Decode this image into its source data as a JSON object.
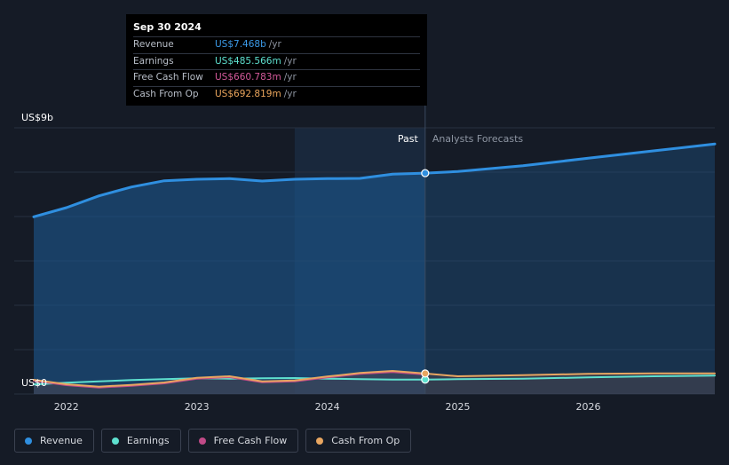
{
  "colors": {
    "revenue": "#2f8fe0",
    "earnings": "#5ee0cf",
    "free_cash_flow": "#c04a87",
    "cash_from_op": "#e8a661",
    "background": "#151b26",
    "grid": "#262e3b"
  },
  "tooltip": {
    "date": "Sep 30 2024",
    "rows": [
      {
        "label": "Revenue",
        "value": "US$7.468b",
        "unit": "/yr",
        "color": "#3b9ae8"
      },
      {
        "label": "Earnings",
        "value": "US$485.566m",
        "unit": "/yr",
        "color": "#5ee0cf"
      },
      {
        "label": "Free Cash Flow",
        "value": "US$660.783m",
        "unit": "/yr",
        "color": "#d45a9a"
      },
      {
        "label": "Cash From Op",
        "value": "US$692.819m",
        "unit": "/yr",
        "color": "#eaa55c"
      }
    ]
  },
  "chart_data": {
    "type": "line",
    "title": "",
    "ylabel": "",
    "xlabel": "",
    "y_axis_labels": [
      "US$9b",
      "US$0"
    ],
    "ylim": [
      0,
      9
    ],
    "y_unit": "billions USD",
    "x_ticks": [
      "2022",
      "2023",
      "2024",
      "2025",
      "2026"
    ],
    "xlim": [
      2021.6,
      2026.97
    ],
    "divider_x": 2024.75,
    "past_label": "Past",
    "forecast_label": "Analysts Forecasts",
    "highlight_band": [
      2023.75,
      2024.75
    ],
    "grid": true,
    "legend_position": "bottom",
    "series": [
      {
        "name": "Revenue",
        "color": "#2f8fe0",
        "x": [
          2021.75,
          2022.0,
          2022.25,
          2022.5,
          2022.75,
          2023.0,
          2023.25,
          2023.5,
          2023.75,
          2024.0,
          2024.25,
          2024.5,
          2024.75,
          2025.0,
          2025.5,
          2026.0,
          2026.5,
          2026.97
        ],
        "y": [
          5.99,
          6.3,
          6.7,
          7.0,
          7.21,
          7.26,
          7.28,
          7.2,
          7.26,
          7.28,
          7.29,
          7.43,
          7.468,
          7.52,
          7.72,
          7.97,
          8.22,
          8.45
        ]
      },
      {
        "name": "Earnings",
        "color": "#5ee0cf",
        "x": [
          2021.75,
          2022.0,
          2022.25,
          2022.5,
          2022.75,
          2023.0,
          2023.25,
          2023.5,
          2023.75,
          2024.0,
          2024.25,
          2024.5,
          2024.75,
          2025.0,
          2025.5,
          2026.0,
          2026.5,
          2026.97
        ],
        "y": [
          0.32,
          0.38,
          0.43,
          0.47,
          0.5,
          0.53,
          0.52,
          0.53,
          0.54,
          0.52,
          0.5,
          0.49,
          0.486,
          0.5,
          0.52,
          0.56,
          0.6,
          0.62
        ]
      },
      {
        "name": "Free Cash Flow",
        "color": "#c04a87",
        "x": [
          2021.75,
          2022.0,
          2022.25,
          2022.5,
          2022.75,
          2023.0,
          2023.25,
          2023.5,
          2023.75,
          2024.0,
          2024.25,
          2024.5,
          2024.75
        ],
        "y": [
          0.45,
          0.3,
          0.22,
          0.28,
          0.36,
          0.52,
          0.57,
          0.4,
          0.43,
          0.56,
          0.68,
          0.74,
          0.661
        ]
      },
      {
        "name": "Cash From Op",
        "color": "#e8a661",
        "x": [
          2021.75,
          2022.0,
          2022.25,
          2022.5,
          2022.75,
          2023.0,
          2023.25,
          2023.5,
          2023.75,
          2024.0,
          2024.25,
          2024.5,
          2024.75,
          2025.0,
          2025.5,
          2026.0,
          2026.5,
          2026.97
        ],
        "y": [
          0.48,
          0.33,
          0.25,
          0.31,
          0.39,
          0.55,
          0.6,
          0.43,
          0.46,
          0.59,
          0.71,
          0.78,
          0.693,
          0.6,
          0.64,
          0.68,
          0.7,
          0.7
        ]
      }
    ]
  },
  "legend": [
    {
      "name": "Revenue",
      "color": "#2f8fe0"
    },
    {
      "name": "Earnings",
      "color": "#5ee0cf"
    },
    {
      "name": "Free Cash Flow",
      "color": "#c04a87"
    },
    {
      "name": "Cash From Op",
      "color": "#e8a661"
    }
  ]
}
